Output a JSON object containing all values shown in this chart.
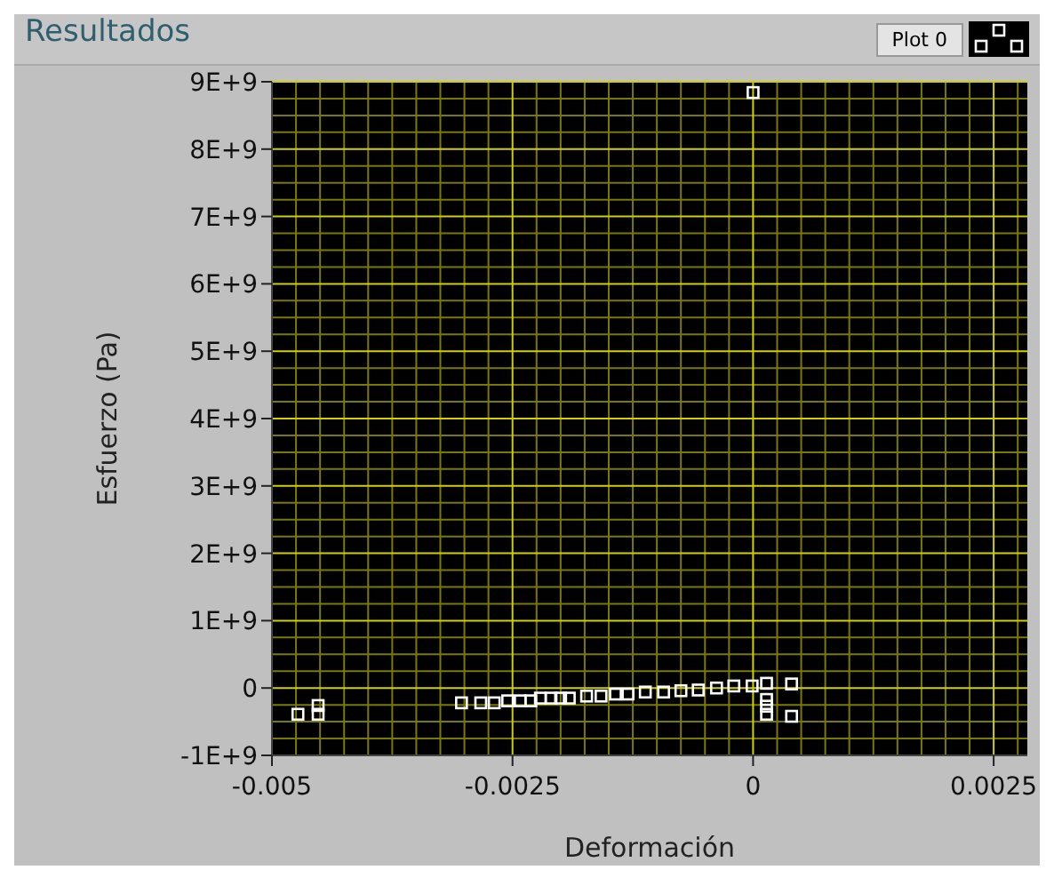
{
  "chart_data": {
    "type": "scatter",
    "title": "Resultados",
    "xlabel": "Deformación",
    "ylabel": "Esfuerzo (Pa)",
    "xlim": [
      -0.005,
      0.00285
    ],
    "ylim": [
      -1000000000,
      9000000000
    ],
    "xticks": [
      -0.005,
      {
        "value": -0.00475,
        "label": null
      },
      {
        "value": -0.0045,
        "label": null
      },
      {
        "value": -0.00425,
        "label": null
      },
      {
        "value": -0.004,
        "label": null
      },
      {
        "value": -0.00375,
        "label": null
      },
      {
        "value": -0.0035,
        "label": null
      },
      {
        "value": -0.00325,
        "label": null
      },
      {
        "value": -0.003,
        "label": null
      },
      {
        "value": -0.00275,
        "label": null
      },
      -0.0025,
      {
        "value": -0.00225,
        "label": null
      },
      {
        "value": -0.002,
        "label": null
      },
      {
        "value": -0.00175,
        "label": null
      },
      {
        "value": -0.0015,
        "label": null
      },
      {
        "value": -0.00125,
        "label": null
      },
      {
        "value": -0.001,
        "label": null
      },
      {
        "value": -0.00075,
        "label": null
      },
      {
        "value": -0.0005,
        "label": null
      },
      {
        "value": -0.00025,
        "label": null
      },
      0,
      {
        "value": 0.00025,
        "label": null
      },
      {
        "value": 0.0005,
        "label": null
      },
      {
        "value": 0.00075,
        "label": null
      },
      {
        "value": 0.001,
        "label": null
      },
      {
        "value": 0.00125,
        "label": null
      },
      {
        "value": 0.0015,
        "label": null
      },
      {
        "value": 0.00175,
        "label": null
      },
      {
        "value": 0.002,
        "label": null
      },
      {
        "value": 0.00225,
        "label": null
      },
      0.0025,
      {
        "value": 0.00275,
        "label": null
      }
    ],
    "yticks": [
      {
        "value": -1000000000,
        "label": "-1E+9"
      },
      {
        "value": -750000000,
        "label": null
      },
      {
        "value": -500000000,
        "label": null
      },
      {
        "value": -250000000,
        "label": null
      },
      {
        "value": 0,
        "label": "0"
      },
      {
        "value": 250000000,
        "label": null
      },
      {
        "value": 500000000,
        "label": null
      },
      {
        "value": 750000000,
        "label": null
      },
      {
        "value": 1000000000,
        "label": "1E+9"
      },
      {
        "value": 1250000000,
        "label": null
      },
      {
        "value": 1500000000,
        "label": null
      },
      {
        "value": 1750000000,
        "label": null
      },
      {
        "value": 2000000000,
        "label": "2E+9"
      },
      {
        "value": 2250000000,
        "label": null
      },
      {
        "value": 2500000000,
        "label": null
      },
      {
        "value": 2750000000,
        "label": null
      },
      {
        "value": 3000000000,
        "label": "3E+9"
      },
      {
        "value": 3250000000,
        "label": null
      },
      {
        "value": 3500000000,
        "label": null
      },
      {
        "value": 3750000000,
        "label": null
      },
      {
        "value": 4000000000,
        "label": "4E+9"
      },
      {
        "value": 4250000000,
        "label": null
      },
      {
        "value": 4500000000,
        "label": null
      },
      {
        "value": 4750000000,
        "label": null
      },
      {
        "value": 5000000000,
        "label": "5E+9"
      },
      {
        "value": 5250000000,
        "label": null
      },
      {
        "value": 5500000000,
        "label": null
      },
      {
        "value": 5750000000,
        "label": null
      },
      {
        "value": 6000000000,
        "label": "6E+9"
      },
      {
        "value": 6250000000,
        "label": null
      },
      {
        "value": 6500000000,
        "label": null
      },
      {
        "value": 6750000000,
        "label": null
      },
      {
        "value": 7000000000,
        "label": "7E+9"
      },
      {
        "value": 7250000000,
        "label": null
      },
      {
        "value": 7500000000,
        "label": null
      },
      {
        "value": 7750000000,
        "label": null
      },
      {
        "value": 8000000000,
        "label": "8E+9"
      },
      {
        "value": 8250000000,
        "label": null
      },
      {
        "value": 8500000000,
        "label": null
      },
      {
        "value": 8750000000,
        "label": null
      },
      {
        "value": 9000000000,
        "label": "9E+9"
      }
    ],
    "grid": true,
    "legend": "top right",
    "marker": "square",
    "series": [
      {
        "name": "Plot 0",
        "color": "#ffffff",
        "x": [
          -0.00473,
          -0.00452,
          -0.00452,
          -0.00303,
          -0.00283,
          -0.00269,
          -0.00255,
          -0.00242,
          -0.00231,
          -0.00221,
          -0.0021,
          -0.002,
          -0.00191,
          -0.00173,
          -0.00158,
          -0.00143,
          -0.0013,
          -0.00112,
          -0.00093,
          -0.00075,
          -0.00057,
          -0.00038,
          -0.0002,
          -1e-05,
          0.00014,
          0.00014,
          0.00014,
          0.00014,
          0.0004,
          0.0004,
          0
        ],
        "values": [
          -390000000,
          -260000000,
          -390000000,
          -220000000,
          -220000000,
          -220000000,
          -190000000,
          -190000000,
          -190000000,
          -150000000,
          -150000000,
          -150000000,
          -150000000,
          -120000000,
          -120000000,
          -90000000,
          -90000000,
          -60000000,
          -60000000,
          -40000000,
          -30000000,
          0,
          30000000,
          30000000,
          70000000,
          -170000000,
          -270000000,
          -390000000,
          60000000,
          -420000000,
          8840000000
        ]
      }
    ]
  }
}
